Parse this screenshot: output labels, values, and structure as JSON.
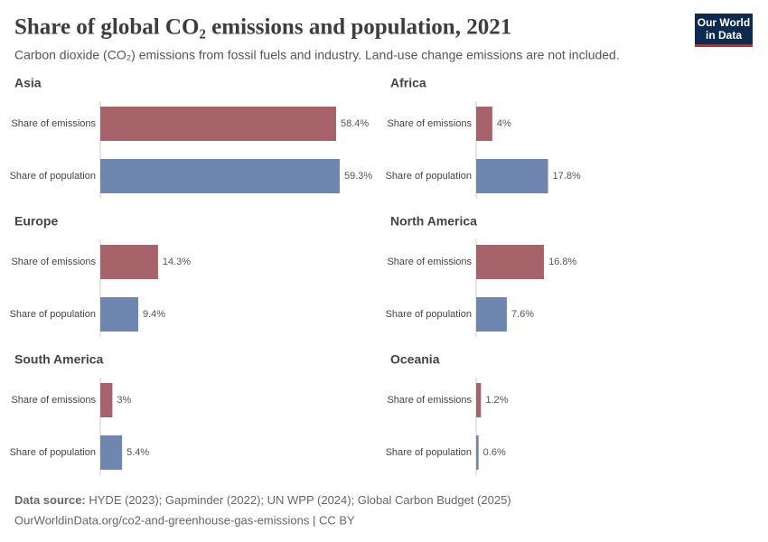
{
  "header": {
    "title": "Share of global CO₂ emissions and population, 2021",
    "subtitle": "Carbon dioxide (CO₂) emissions from fossil fuels and industry. Land-use change emissions are not included.",
    "logo": [
      "Our World",
      "in Data"
    ]
  },
  "chart_data": [
    {
      "type": "bar",
      "title": "Asia",
      "categories": [
        "Share of emissions",
        "Share of population"
      ],
      "values": [
        58.4,
        59.3
      ],
      "value_labels": [
        "58.4%",
        "59.3%"
      ],
      "colors": [
        "#a8636a",
        "#6e86b0"
      ]
    },
    {
      "type": "bar",
      "title": "Africa",
      "categories": [
        "Share of emissions",
        "Share of population"
      ],
      "values": [
        4,
        17.8
      ],
      "value_labels": [
        "4%",
        "17.8%"
      ],
      "colors": [
        "#a8636a",
        "#6e86b0"
      ]
    },
    {
      "type": "bar",
      "title": "Europe",
      "categories": [
        "Share of emissions",
        "Share of population"
      ],
      "values": [
        14.3,
        9.4
      ],
      "value_labels": [
        "14.3%",
        "9.4%"
      ],
      "colors": [
        "#a8636a",
        "#6e86b0"
      ]
    },
    {
      "type": "bar",
      "title": "North America",
      "categories": [
        "Share of emissions",
        "Share of population"
      ],
      "values": [
        16.8,
        7.6
      ],
      "value_labels": [
        "16.8%",
        "7.6%"
      ],
      "colors": [
        "#a8636a",
        "#6e86b0"
      ]
    },
    {
      "type": "bar",
      "title": "South America",
      "categories": [
        "Share of emissions",
        "Share of population"
      ],
      "values": [
        3,
        5.4
      ],
      "value_labels": [
        "3%",
        "5.4%"
      ],
      "colors": [
        "#a8636a",
        "#6e86b0"
      ]
    },
    {
      "type": "bar",
      "title": "Oceania",
      "categories": [
        "Share of emissions",
        "Share of population"
      ],
      "values": [
        1.2,
        0.6
      ],
      "value_labels": [
        "1.2%",
        "0.6%"
      ],
      "colors": [
        "#a8636a",
        "#6e86b0"
      ]
    }
  ],
  "footer": {
    "source_label": "Data source:",
    "source": "HYDE (2023); Gapminder (2022); UN WPP (2024); Global Carbon Budget (2025)",
    "url": "OurWorldinData.org/co2-and-greenhouse-gas-emissions | CC BY"
  }
}
